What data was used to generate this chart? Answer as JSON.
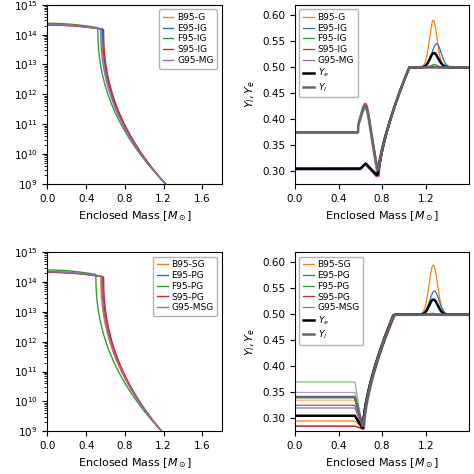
{
  "top_left": {
    "legend": [
      "B95-G",
      "E95-IG",
      "F95-IG",
      "S95-IG",
      "G95-MG"
    ],
    "colors": [
      "#ff7f0e",
      "#1f77b4",
      "#2ca02c",
      "#d62728",
      "#9467bd"
    ],
    "xlabel": "Enclosed Mass $[M_\\odot]$",
    "xlim": [
      0.0,
      1.8
    ],
    "ylim_log": [
      9,
      15
    ],
    "rho_breaks": [
      0.56,
      0.57,
      0.52,
      0.58,
      0.55
    ],
    "rho_top": [
      14.35,
      14.33,
      14.38,
      14.32,
      14.34
    ],
    "rho_end_x": [
      1.22,
      1.22,
      1.22,
      1.22,
      1.22
    ]
  },
  "top_right": {
    "legend_colors": [
      "B95-G",
      "E95-IG",
      "F95-IG",
      "S95-IG",
      "G95-MG"
    ],
    "legend_extra": [
      "$Y_e$",
      "$Y_l$"
    ],
    "colors": [
      "#ff7f0e",
      "#1f77b4",
      "#2ca02c",
      "#d62728",
      "#9467bd"
    ],
    "ylabel": "$Y_l, Y_e$",
    "xlabel": "Enclosed Mass $[M_\\odot]$",
    "xlim": [
      0.0,
      1.6
    ],
    "ylim": [
      0.275,
      0.62
    ]
  },
  "bottom_left": {
    "legend": [
      "B95-SG",
      "E95-PG",
      "F95-PG",
      "S95-PG",
      "G95-MSG"
    ],
    "colors": [
      "#ff7f0e",
      "#1f77b4",
      "#2ca02c",
      "#d62728",
      "#9467bd"
    ],
    "xlabel": "Enclosed Mass $[M_\\odot]$",
    "xlim": [
      0.0,
      1.8
    ],
    "ylim_log": [
      9,
      15
    ],
    "rho_breaks": [
      0.55,
      0.57,
      0.5,
      0.58,
      0.56
    ],
    "rho_top": [
      14.35,
      14.33,
      14.4,
      14.32,
      14.34
    ],
    "rho_end_x": [
      1.18,
      1.18,
      1.18,
      1.18,
      1.18
    ]
  },
  "bottom_right": {
    "legend_colors": [
      "B95-SG",
      "E95-PG",
      "F95-PG",
      "S95-PG",
      "G95-MSG"
    ],
    "legend_extra": [
      "$Y_e$",
      "$Y_l$"
    ],
    "colors": [
      "#ff7f0e",
      "#1f77b4",
      "#2ca02c",
      "#d62728",
      "#9467bd"
    ],
    "ylabel": "$Y_l, Y_e$",
    "xlabel": "Enclosed Mass $[M_\\odot]$",
    "xlim": [
      0.0,
      1.6
    ],
    "ylim": [
      0.275,
      0.62
    ]
  }
}
